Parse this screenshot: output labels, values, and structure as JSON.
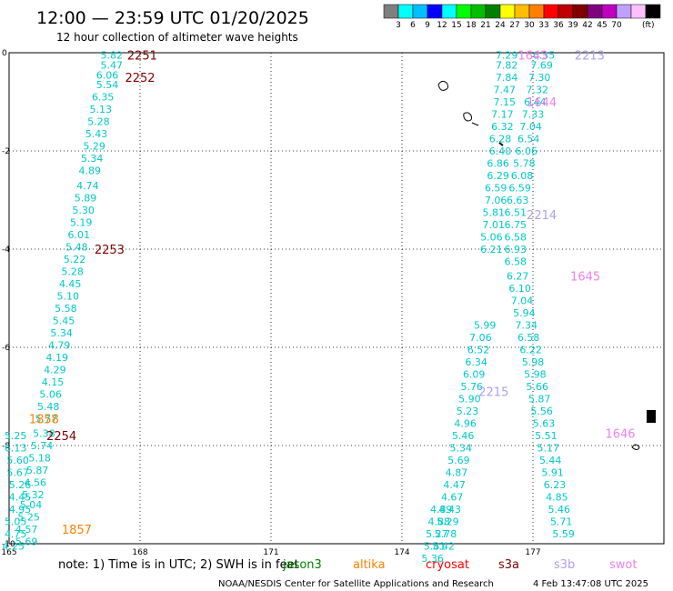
{
  "header": {
    "title": "12:00 — 23:59 UTC 01/20/2025",
    "subtitle": "12 hour collection of altimeter wave heights"
  },
  "colorbar": {
    "colors": [
      "#7f7f7f",
      "#00ffff",
      "#00bfff",
      "#0000ff",
      "#00ffff",
      "#00ff00",
      "#00bf00",
      "#008000",
      "#ffff00",
      "#ffbf00",
      "#ff8000",
      "#ff0000",
      "#bf0000",
      "#800000",
      "#800080",
      "#bf00bf",
      "#c0a0ff",
      "#ffc0ff",
      "#000000"
    ],
    "labels": [
      "3",
      "6",
      "9",
      "12",
      "15",
      "18",
      "21",
      "24",
      "27",
      "30",
      "33",
      "36",
      "39",
      "42",
      "45",
      "70"
    ],
    "unit": "(ft)"
  },
  "chart_data": {
    "type": "scatter",
    "title": "12:00 — 23:59 UTC 01/20/2025",
    "subtitle": "12 hour collection of altimeter wave heights",
    "xlabel": "",
    "ylabel": "",
    "xlim": [
      165,
      180
    ],
    "ylim": [
      -10,
      0
    ],
    "x_ticks": [
      165,
      168,
      171,
      174,
      177
    ],
    "y_ticks": [
      0,
      -2,
      -4,
      -6,
      -8,
      -10
    ],
    "x_tick_labels": [
      "165",
      "168",
      "171",
      "174",
      "177"
    ],
    "y_tick_labels": [
      "0",
      "-2",
      "-4",
      "-6",
      "-8",
      "-10"
    ],
    "grid": true,
    "units": "ft",
    "series": [
      {
        "name": "jason3",
        "color": "#00c8c8",
        "points": [
          {
            "lon": 167.35,
            "lat": -0.05,
            "v": "5.82"
          },
          {
            "lon": 167.35,
            "lat": -0.25,
            "v": "5.47"
          },
          {
            "lon": 167.25,
            "lat": -0.45,
            "v": "6.06"
          },
          {
            "lon": 167.25,
            "lat": -0.65,
            "v": "5.54"
          },
          {
            "lon": 167.15,
            "lat": -0.9,
            "v": "6.35"
          },
          {
            "lon": 167.1,
            "lat": -1.15,
            "v": "5.13"
          },
          {
            "lon": 167.05,
            "lat": -1.4,
            "v": "5.28"
          },
          {
            "lon": 167.0,
            "lat": -1.65,
            "v": "5.43"
          },
          {
            "lon": 166.95,
            "lat": -1.9,
            "v": "5.29"
          },
          {
            "lon": 166.9,
            "lat": -2.15,
            "v": "5.34"
          },
          {
            "lon": 166.85,
            "lat": -2.4,
            "v": "4.89"
          },
          {
            "lon": 166.8,
            "lat": -2.7,
            "v": "4.74"
          },
          {
            "lon": 166.75,
            "lat": -2.95,
            "v": "5.89"
          },
          {
            "lon": 166.7,
            "lat": -3.2,
            "v": "5.30"
          },
          {
            "lon": 166.65,
            "lat": -3.45,
            "v": "5.19"
          },
          {
            "lon": 166.6,
            "lat": -3.7,
            "v": "6.01"
          },
          {
            "lon": 166.55,
            "lat": -3.95,
            "v": "5.48"
          },
          {
            "lon": 166.5,
            "lat": -4.2,
            "v": "5.22"
          },
          {
            "lon": 166.45,
            "lat": -4.45,
            "v": "5.28"
          },
          {
            "lon": 166.4,
            "lat": -4.7,
            "v": "4.45"
          },
          {
            "lon": 166.35,
            "lat": -4.95,
            "v": "5.10"
          },
          {
            "lon": 166.3,
            "lat": -5.2,
            "v": "5.58"
          },
          {
            "lon": 166.25,
            "lat": -5.45,
            "v": "5.45"
          },
          {
            "lon": 166.2,
            "lat": -5.7,
            "v": "5.34"
          },
          {
            "lon": 166.15,
            "lat": -5.95,
            "v": "4.79"
          },
          {
            "lon": 166.1,
            "lat": -6.2,
            "v": "4.19"
          },
          {
            "lon": 166.05,
            "lat": -6.45,
            "v": "4.29"
          },
          {
            "lon": 166.0,
            "lat": -6.7,
            "v": "4.15"
          },
          {
            "lon": 165.95,
            "lat": -6.95,
            "v": "5.06"
          },
          {
            "lon": 165.9,
            "lat": -7.2,
            "v": "5.48"
          },
          {
            "lon": 165.85,
            "lat": -7.45,
            "v": "5.77"
          },
          {
            "lon": 165.8,
            "lat": -7.75,
            "v": "5.38"
          },
          {
            "lon": 165.75,
            "lat": -8.0,
            "v": "5.74"
          },
          {
            "lon": 165.7,
            "lat": -8.25,
            "v": "5.18"
          },
          {
            "lon": 165.65,
            "lat": -8.5,
            "v": "5.87"
          },
          {
            "lon": 165.6,
            "lat": -8.75,
            "v": "4.56"
          },
          {
            "lon": 165.55,
            "lat": -9.0,
            "v": "5.32"
          },
          {
            "lon": 165.5,
            "lat": -9.2,
            "v": "5.04"
          },
          {
            "lon": 165.45,
            "lat": -9.45,
            "v": "5.25"
          },
          {
            "lon": 165.4,
            "lat": -9.7,
            "v": "4.57"
          },
          {
            "lon": 165.4,
            "lat": -9.95,
            "v": "5.69"
          },
          {
            "lon": 165.15,
            "lat": -7.8,
            "v": "5.25"
          },
          {
            "lon": 165.15,
            "lat": -8.05,
            "v": "6.13"
          },
          {
            "lon": 165.2,
            "lat": -8.3,
            "v": "5.60"
          },
          {
            "lon": 165.2,
            "lat": -8.55,
            "v": "5.67"
          },
          {
            "lon": 165.25,
            "lat": -8.8,
            "v": "5.26"
          },
          {
            "lon": 165.25,
            "lat": -9.05,
            "v": "4.45"
          },
          {
            "lon": 165.25,
            "lat": -9.3,
            "v": "4.95"
          },
          {
            "lon": 165.15,
            "lat": -9.55,
            "v": "5.05"
          },
          {
            "lon": 165.15,
            "lat": -9.8,
            "v": "4.75"
          },
          {
            "lon": 165.1,
            "lat": -10.05,
            "v": "4.25"
          },
          {
            "lon": 175.9,
            "lat": -5.55,
            "v": "5.99"
          },
          {
            "lon": 175.8,
            "lat": -5.8,
            "v": "7.06"
          },
          {
            "lon": 175.75,
            "lat": -6.05,
            "v": "6.52"
          },
          {
            "lon": 175.7,
            "lat": -6.3,
            "v": "6.34"
          },
          {
            "lon": 175.65,
            "lat": -6.55,
            "v": "6.09"
          },
          {
            "lon": 175.6,
            "lat": -6.8,
            "v": "5.76"
          },
          {
            "lon": 175.55,
            "lat": -7.05,
            "v": "5.90"
          },
          {
            "lon": 175.5,
            "lat": -7.3,
            "v": "5.23"
          },
          {
            "lon": 175.45,
            "lat": -7.55,
            "v": "4.96"
          },
          {
            "lon": 175.4,
            "lat": -7.8,
            "v": "5.46"
          },
          {
            "lon": 175.35,
            "lat": -8.05,
            "v": "5.34"
          },
          {
            "lon": 175.3,
            "lat": -8.3,
            "v": "5.69"
          },
          {
            "lon": 175.25,
            "lat": -8.55,
            "v": "4.87"
          },
          {
            "lon": 175.2,
            "lat": -8.8,
            "v": "4.47"
          },
          {
            "lon": 175.15,
            "lat": -9.05,
            "v": "4.67"
          },
          {
            "lon": 175.1,
            "lat": -9.3,
            "v": "4.43"
          },
          {
            "lon": 175.05,
            "lat": -9.55,
            "v": "5.29"
          },
          {
            "lon": 175.0,
            "lat": -9.8,
            "v": "5.78"
          },
          {
            "lon": 174.95,
            "lat": -10.05,
            "v": "5.42"
          }
        ]
      },
      {
        "name": "jason3-east",
        "color": "#00c8c8",
        "points": [
          {
            "lon": 176.4,
            "lat": -0.05,
            "v": "7.29"
          },
          {
            "lon": 176.4,
            "lat": -0.25,
            "v": "7.82"
          },
          {
            "lon": 176.4,
            "lat": -0.5,
            "v": "7.84"
          },
          {
            "lon": 176.35,
            "lat": -0.75,
            "v": "7.47"
          },
          {
            "lon": 176.35,
            "lat": -1.0,
            "v": "7.15"
          },
          {
            "lon": 176.3,
            "lat": -1.25,
            "v": "7.17"
          },
          {
            "lon": 176.3,
            "lat": -1.5,
            "v": "6.32"
          },
          {
            "lon": 176.25,
            "lat": -1.75,
            "v": "6.28"
          },
          {
            "lon": 176.25,
            "lat": -2.0,
            "v": "6.40"
          },
          {
            "lon": 176.2,
            "lat": -2.25,
            "v": "6.86"
          },
          {
            "lon": 176.2,
            "lat": -2.5,
            "v": "6.29"
          },
          {
            "lon": 176.15,
            "lat": -2.75,
            "v": "6.59"
          },
          {
            "lon": 176.15,
            "lat": -3.0,
            "v": "7.06"
          },
          {
            "lon": 176.1,
            "lat": -3.25,
            "v": "5.81"
          },
          {
            "lon": 176.1,
            "lat": -3.5,
            "v": "7.01"
          },
          {
            "lon": 176.05,
            "lat": -3.75,
            "v": "5.06"
          },
          {
            "lon": 176.05,
            "lat": -4.0,
            "v": "6.21"
          },
          {
            "lon": 177.25,
            "lat": -0.05,
            "v": "6.35"
          },
          {
            "lon": 177.2,
            "lat": -0.25,
            "v": "7.69"
          },
          {
            "lon": 177.15,
            "lat": -0.5,
            "v": "7.30"
          },
          {
            "lon": 177.1,
            "lat": -0.75,
            "v": "7.32"
          },
          {
            "lon": 177.05,
            "lat": -1.0,
            "v": "6.44"
          },
          {
            "lon": 177.0,
            "lat": -1.25,
            "v": "7.33"
          },
          {
            "lon": 176.95,
            "lat": -1.5,
            "v": "7.04"
          },
          {
            "lon": 176.9,
            "lat": -1.75,
            "v": "6.54"
          },
          {
            "lon": 176.85,
            "lat": -2.0,
            "v": "6.06"
          },
          {
            "lon": 176.8,
            "lat": -2.25,
            "v": "5.78"
          },
          {
            "lon": 176.75,
            "lat": -2.5,
            "v": "6.08"
          },
          {
            "lon": 176.7,
            "lat": -2.75,
            "v": "6.59"
          },
          {
            "lon": 176.65,
            "lat": -3.0,
            "v": "6.63"
          },
          {
            "lon": 176.6,
            "lat": -3.25,
            "v": "6.51"
          },
          {
            "lon": 176.6,
            "lat": -3.5,
            "v": "6.75"
          },
          {
            "lon": 176.6,
            "lat": -3.75,
            "v": "6.58"
          },
          {
            "lon": 176.6,
            "lat": -4.0,
            "v": "6.93"
          },
          {
            "lon": 176.6,
            "lat": -4.25,
            "v": "6.58"
          },
          {
            "lon": 176.65,
            "lat": -4.55,
            "v": "6.27"
          },
          {
            "lon": 176.7,
            "lat": -4.8,
            "v": "6.10"
          },
          {
            "lon": 176.75,
            "lat": -5.05,
            "v": "7.04"
          },
          {
            "lon": 176.8,
            "lat": -5.3,
            "v": "5.94"
          },
          {
            "lon": 176.85,
            "lat": -5.55,
            "v": "7.34"
          },
          {
            "lon": 176.9,
            "lat": -5.8,
            "v": "6.58"
          },
          {
            "lon": 176.95,
            "lat": -6.05,
            "v": "6.22"
          },
          {
            "lon": 177.0,
            "lat": -6.3,
            "v": "5.98"
          },
          {
            "lon": 177.05,
            "lat": -6.55,
            "v": "5.98"
          },
          {
            "lon": 177.1,
            "lat": -6.8,
            "v": "5.66"
          },
          {
            "lon": 177.15,
            "lat": -7.05,
            "v": "5.87"
          },
          {
            "lon": 177.2,
            "lat": -7.3,
            "v": "5.56"
          },
          {
            "lon": 177.25,
            "lat": -7.55,
            "v": "5.63"
          },
          {
            "lon": 177.3,
            "lat": -7.8,
            "v": "5.51"
          },
          {
            "lon": 177.35,
            "lat": -8.05,
            "v": "5.17"
          },
          {
            "lon": 177.4,
            "lat": -8.3,
            "v": "5.44"
          },
          {
            "lon": 177.45,
            "lat": -8.55,
            "v": "5.91"
          },
          {
            "lon": 177.5,
            "lat": -8.8,
            "v": "6.23"
          },
          {
            "lon": 177.55,
            "lat": -9.05,
            "v": "4.85"
          },
          {
            "lon": 177.6,
            "lat": -9.3,
            "v": "5.46"
          },
          {
            "lon": 177.65,
            "lat": -9.55,
            "v": "5.71"
          },
          {
            "lon": 177.7,
            "lat": -9.8,
            "v": "5.59"
          },
          {
            "lon": 174.9,
            "lat": -9.3,
            "v": "4.89"
          },
          {
            "lon": 174.85,
            "lat": -9.55,
            "v": "4.88"
          },
          {
            "lon": 174.8,
            "lat": -9.8,
            "v": "5.27"
          },
          {
            "lon": 174.75,
            "lat": -10.05,
            "v": "5.81"
          },
          {
            "lon": 174.7,
            "lat": -10.3,
            "v": "5.36"
          }
        ]
      }
    ],
    "time_labels": [
      {
        "text": "2251",
        "color": "#800000",
        "lon": 168.05,
        "lat": -0.05
      },
      {
        "text": "2252",
        "color": "#800000",
        "lon": 168.0,
        "lat": -0.5
      },
      {
        "text": "2253",
        "color": "#800000",
        "lon": 167.3,
        "lat": -4.0
      },
      {
        "text": "2254",
        "color": "#800000",
        "lon": 166.2,
        "lat": -7.8
      },
      {
        "text": "1858",
        "color": "#ff8000",
        "lon": 165.8,
        "lat": -7.45
      },
      {
        "text": "1857",
        "color": "#ff8000",
        "lon": 166.55,
        "lat": -9.7
      },
      {
        "text": "1643",
        "color": "#ee82ee",
        "lon": 177.0,
        "lat": -0.05
      },
      {
        "text": "1644",
        "color": "#ee82ee",
        "lon": 177.2,
        "lat": -1.0
      },
      {
        "text": "1645",
        "color": "#ee82ee",
        "lon": 178.2,
        "lat": -4.55
      },
      {
        "text": "1646",
        "color": "#ee82ee",
        "lon": 179.0,
        "lat": -7.75
      },
      {
        "text": "2213",
        "color": "#b0a0e8",
        "lon": 178.3,
        "lat": -0.05
      },
      {
        "text": "2214",
        "color": "#b0a0e8",
        "lon": 177.2,
        "lat": -3.3
      },
      {
        "text": "2215",
        "color": "#b0a0e8",
        "lon": 176.1,
        "lat": -6.9
      }
    ]
  },
  "footer": {
    "note": "note:  1) Time is in UTC; 2) SWH is in feet",
    "satellites": [
      {
        "name": "jason3",
        "color": "#008000"
      },
      {
        "name": "altika",
        "color": "#ff8000"
      },
      {
        "name": "cryosat",
        "color": "#ff0000"
      },
      {
        "name": "s3a",
        "color": "#800000"
      },
      {
        "name": "s3b",
        "color": "#b0a0e8"
      },
      {
        "name": "swot",
        "color": "#ee82ee"
      }
    ],
    "credit": "NOAA/NESDIS Center for Satellite Applications and Research",
    "timestamp": "4 Feb 13:47:08 UTC 2025"
  }
}
